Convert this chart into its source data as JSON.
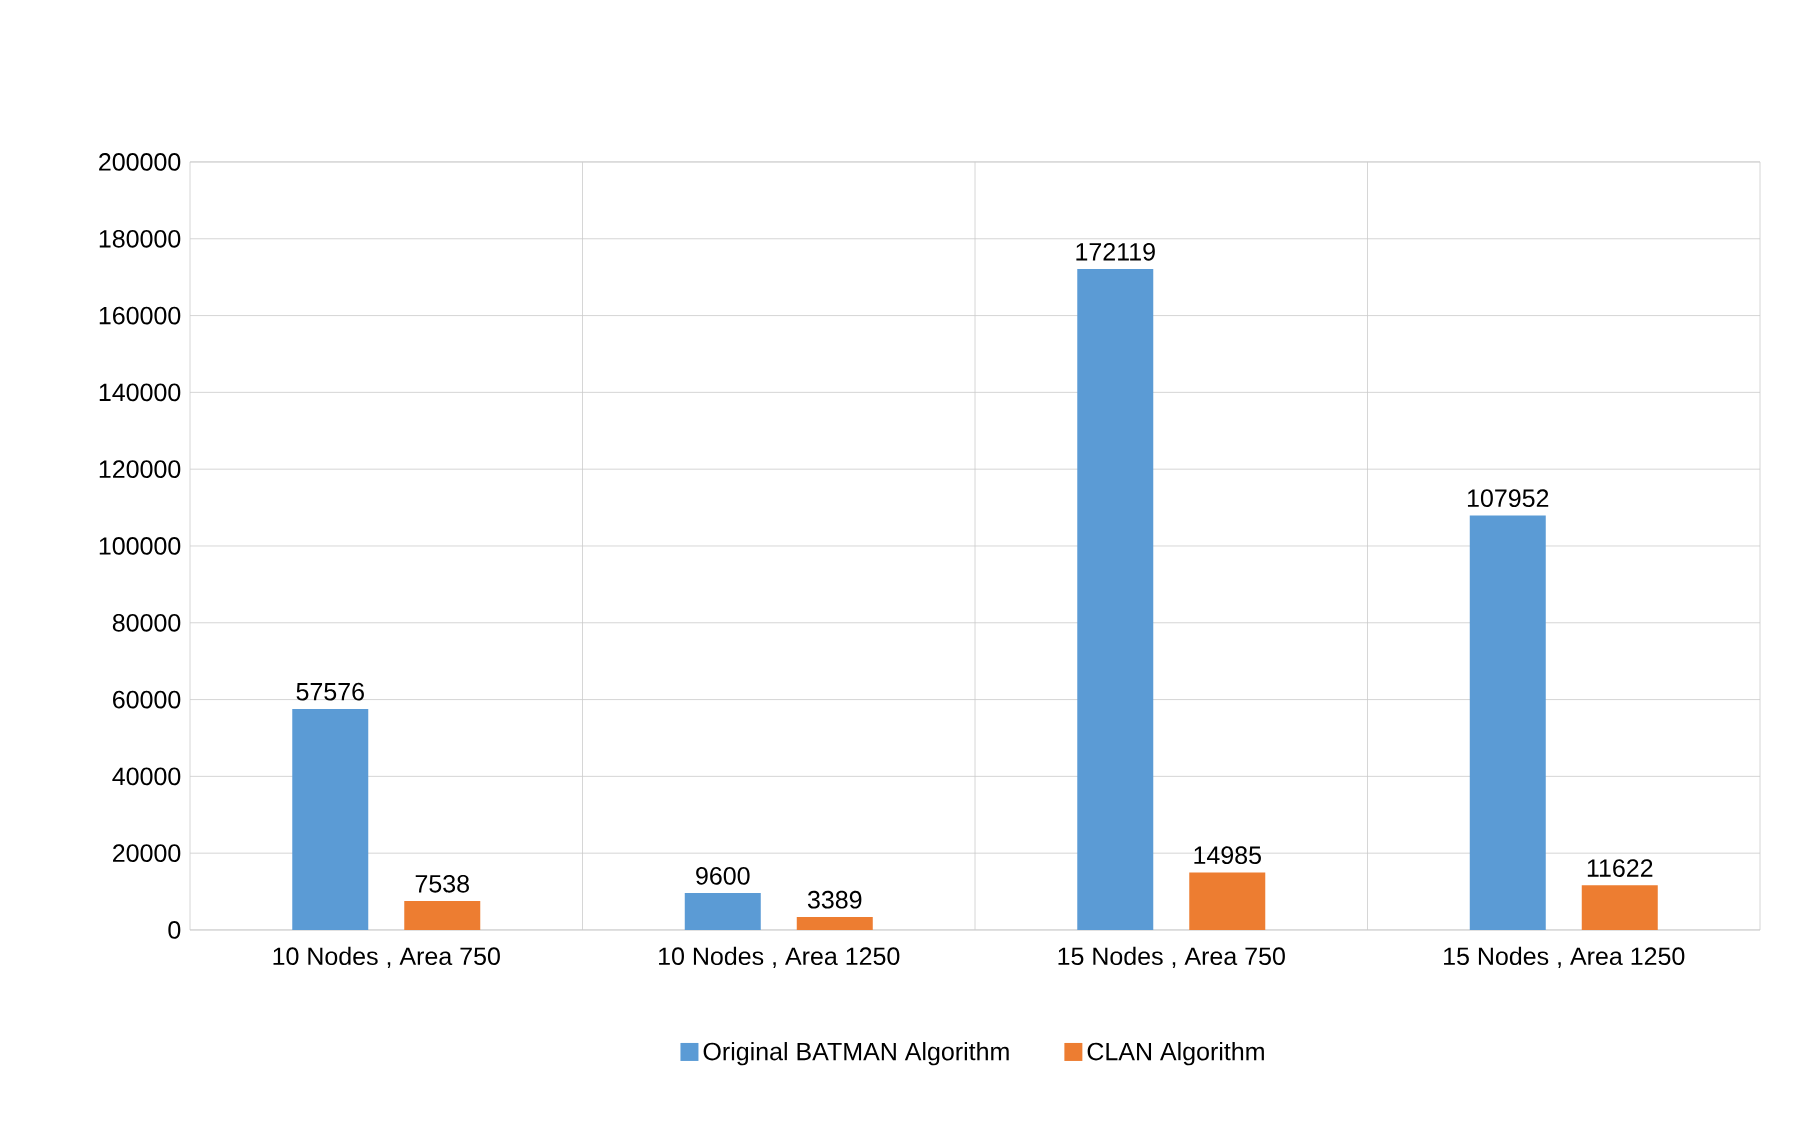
{
  "chart_data": {
    "type": "bar",
    "categories": [
      "10 Nodes , Area 750",
      "10 Nodes , Area 1250",
      "15 Nodes , Area 750",
      "15 Nodes , Area 1250"
    ],
    "series": [
      {
        "name": "Original BATMAN Algorithm",
        "color": "#5b9bd5",
        "values": [
          57576,
          9600,
          172119,
          107952
        ]
      },
      {
        "name": "CLAN Algorithm",
        "color": "#ed7d31",
        "values": [
          7538,
          3389,
          14985,
          11622
        ]
      }
    ],
    "ylim": [
      0,
      200000
    ],
    "yticks": [
      0,
      20000,
      40000,
      60000,
      80000,
      100000,
      120000,
      140000,
      160000,
      180000,
      200000
    ],
    "grid": true,
    "legend": "bottom",
    "data_labels": true
  }
}
